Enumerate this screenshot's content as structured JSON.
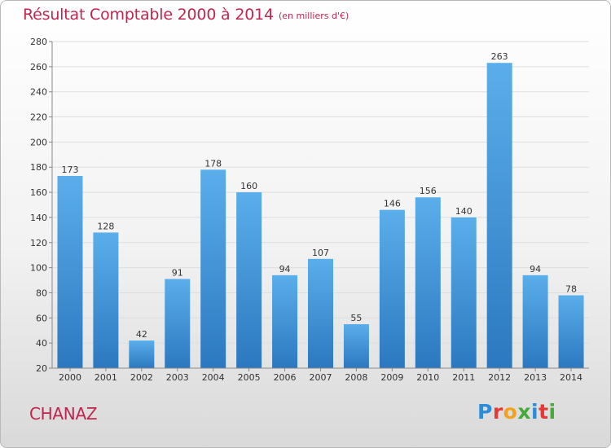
{
  "chart_data": {
    "type": "bar",
    "title": "Résultat Comptable 2000 à 2014",
    "subtitle": "(en milliers d'€)",
    "categories": [
      "2000",
      "2001",
      "2002",
      "2003",
      "2004",
      "2005",
      "2006",
      "2007",
      "2008",
      "2009",
      "2010",
      "2011",
      "2012",
      "2013",
      "2014"
    ],
    "values": [
      173,
      128,
      42,
      91,
      178,
      160,
      94,
      107,
      55,
      146,
      156,
      140,
      263,
      94,
      78
    ],
    "ylim": [
      20,
      280
    ],
    "yticks": [
      20,
      40,
      60,
      80,
      100,
      120,
      140,
      160,
      180,
      200,
      220,
      240,
      260,
      280
    ],
    "grid": true,
    "bar_color": "#3d8fd6"
  },
  "commune": "CHANAZ",
  "logo": {
    "text": "Proxiti",
    "letters": [
      {
        "ch": "P",
        "color": "#2e8bd6"
      },
      {
        "ch": "r",
        "color": "#e53935"
      },
      {
        "ch": "o",
        "color": "#f4a21d"
      },
      {
        "ch": "x",
        "color": "#47a83c"
      },
      {
        "ch": "i",
        "color": "#2e8bd6"
      },
      {
        "ch": "t",
        "color": "#e53935"
      },
      {
        "ch": "i",
        "color": "#47a83c"
      }
    ]
  }
}
